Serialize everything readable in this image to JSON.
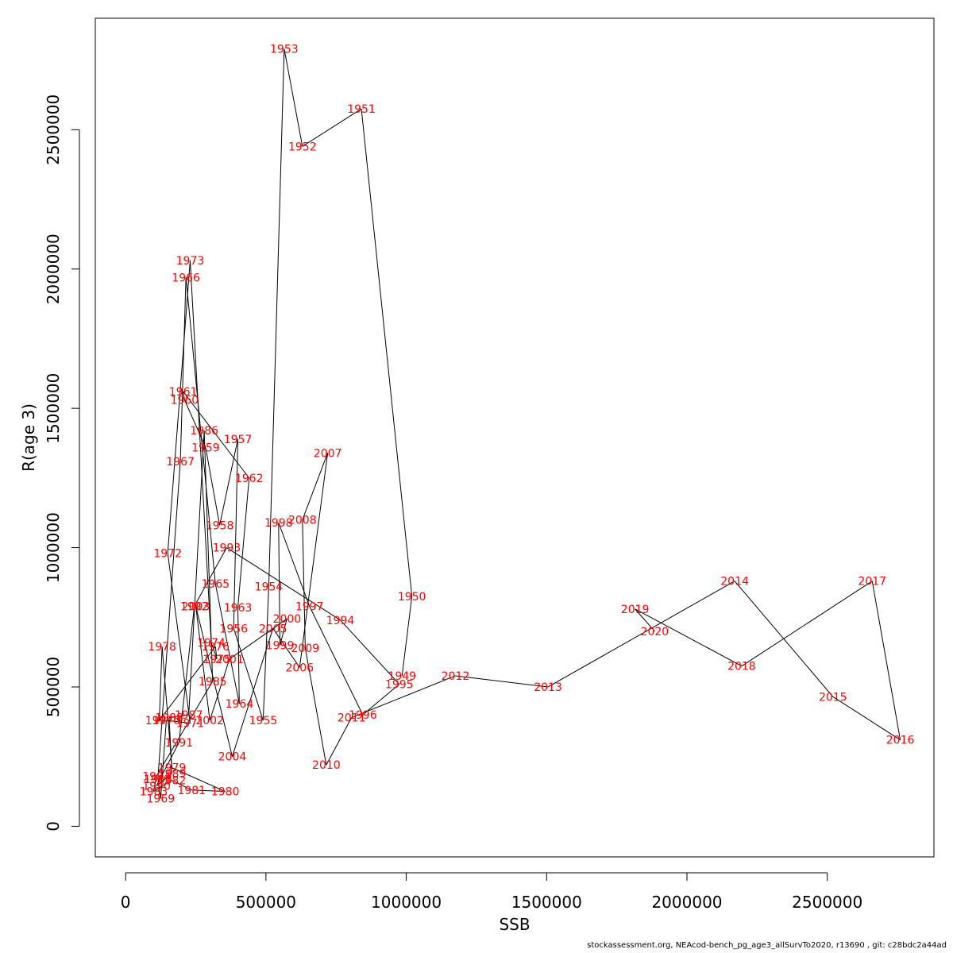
{
  "chart_data": {
    "type": "line",
    "xlabel": "SSB",
    "ylabel": "R(age 3)",
    "xlim": [
      -108000,
      2880000
    ],
    "ylim": [
      -110000,
      2900000
    ],
    "x_ticks": [
      0,
      500000,
      1000000,
      1500000,
      2000000,
      2500000
    ],
    "x_tick_labels": [
      "0",
      "500000",
      "1000000",
      "1500000",
      "2000000",
      "2500000"
    ],
    "y_ticks": [
      0,
      500000,
      1000000,
      1500000,
      2000000,
      2500000
    ],
    "y_tick_labels": [
      "0",
      "500000",
      "1000000",
      "1500000",
      "2000000",
      "2500000"
    ],
    "grid": false,
    "line_color": "#000000",
    "label_color": "#ff0000",
    "points": [
      {
        "label": "1949",
        "x": 985000,
        "y": 540000
      },
      {
        "label": "1950",
        "x": 1020000,
        "y": 825000
      },
      {
        "label": "1951",
        "x": 840000,
        "y": 2575000
      },
      {
        "label": "1952",
        "x": 630000,
        "y": 2440000
      },
      {
        "label": "1953",
        "x": 565000,
        "y": 2790000
      },
      {
        "label": "1954",
        "x": 510000,
        "y": 860000
      },
      {
        "label": "1955",
        "x": 490000,
        "y": 380000
      },
      {
        "label": "1956",
        "x": 385000,
        "y": 710000
      },
      {
        "label": "1957",
        "x": 400000,
        "y": 1390000
      },
      {
        "label": "1958",
        "x": 335000,
        "y": 1080000
      },
      {
        "label": "1959",
        "x": 285000,
        "y": 1360000
      },
      {
        "label": "1960",
        "x": 210000,
        "y": 1530000
      },
      {
        "label": "1961",
        "x": 205000,
        "y": 1560000
      },
      {
        "label": "1962",
        "x": 440000,
        "y": 1250000
      },
      {
        "label": "1963",
        "x": 400000,
        "y": 785000
      },
      {
        "label": "1964",
        "x": 405000,
        "y": 440000
      },
      {
        "label": "1965",
        "x": 320000,
        "y": 870000
      },
      {
        "label": "1966",
        "x": 215000,
        "y": 1970000
      },
      {
        "label": "1967",
        "x": 195000,
        "y": 1310000
      },
      {
        "label": "1968",
        "x": 115000,
        "y": 170000
      },
      {
        "label": "1969",
        "x": 125000,
        "y": 100000
      },
      {
        "label": "1970",
        "x": 145000,
        "y": 380000
      },
      {
        "label": "1971",
        "x": 230000,
        "y": 370000
      },
      {
        "label": "1972",
        "x": 150000,
        "y": 980000
      },
      {
        "label": "1973",
        "x": 230000,
        "y": 2030000
      },
      {
        "label": "1974",
        "x": 305000,
        "y": 660000
      },
      {
        "label": "1975",
        "x": 325000,
        "y": 600000
      },
      {
        "label": "1976",
        "x": 320000,
        "y": 645000
      },
      {
        "label": "1977",
        "x": 120000,
        "y": 380000
      },
      {
        "label": "1978",
        "x": 130000,
        "y": 645000
      },
      {
        "label": "1979",
        "x": 165000,
        "y": 210000
      },
      {
        "label": "1980",
        "x": 355000,
        "y": 125000
      },
      {
        "label": "1981",
        "x": 235000,
        "y": 130000
      },
      {
        "label": "1982",
        "x": 165000,
        "y": 165000
      },
      {
        "label": "1983",
        "x": 100000,
        "y": 125000
      },
      {
        "label": "1984",
        "x": 110000,
        "y": 180000
      },
      {
        "label": "1985",
        "x": 310000,
        "y": 520000
      },
      {
        "label": "1986",
        "x": 280000,
        "y": 1420000
      },
      {
        "label": "1987",
        "x": 225000,
        "y": 400000
      },
      {
        "label": "1988",
        "x": 155000,
        "y": 390000
      },
      {
        "label": "1989",
        "x": 165000,
        "y": 190000
      },
      {
        "label": "1990",
        "x": 110000,
        "y": 145000
      },
      {
        "label": "1991",
        "x": 190000,
        "y": 300000
      },
      {
        "label": "1992",
        "x": 245000,
        "y": 790000
      },
      {
        "label": "1993",
        "x": 360000,
        "y": 1000000
      },
      {
        "label": "1994",
        "x": 765000,
        "y": 740000
      },
      {
        "label": "1995",
        "x": 975000,
        "y": 510000
      },
      {
        "label": "1996",
        "x": 845000,
        "y": 400000
      },
      {
        "label": "1997",
        "x": 655000,
        "y": 790000
      },
      {
        "label": "1998",
        "x": 545000,
        "y": 1090000
      },
      {
        "label": "1999",
        "x": 550000,
        "y": 650000
      },
      {
        "label": "2000",
        "x": 575000,
        "y": 745000
      },
      {
        "label": "2001",
        "x": 370000,
        "y": 600000
      },
      {
        "label": "2002",
        "x": 300000,
        "y": 380000
      },
      {
        "label": "2003",
        "x": 250000,
        "y": 790000
      },
      {
        "label": "2004",
        "x": 380000,
        "y": 250000
      },
      {
        "label": "2005",
        "x": 525000,
        "y": 710000
      },
      {
        "label": "2006",
        "x": 620000,
        "y": 570000
      },
      {
        "label": "2007",
        "x": 720000,
        "y": 1340000
      },
      {
        "label": "2008",
        "x": 630000,
        "y": 1100000
      },
      {
        "label": "2009",
        "x": 640000,
        "y": 640000
      },
      {
        "label": "2010",
        "x": 715000,
        "y": 220000
      },
      {
        "label": "2011",
        "x": 805000,
        "y": 390000
      },
      {
        "label": "2012",
        "x": 1175000,
        "y": 540000
      },
      {
        "label": "2013",
        "x": 1505000,
        "y": 500000
      },
      {
        "label": "2014",
        "x": 2170000,
        "y": 880000
      },
      {
        "label": "2015",
        "x": 2520000,
        "y": 465000
      },
      {
        "label": "2016",
        "x": 2760000,
        "y": 310000
      },
      {
        "label": "2017",
        "x": 2660000,
        "y": 880000
      },
      {
        "label": "2018",
        "x": 2195000,
        "y": 575000
      },
      {
        "label": "2019",
        "x": 1815000,
        "y": 780000
      },
      {
        "label": "2020",
        "x": 1885000,
        "y": 700000
      }
    ]
  },
  "footer_text": "stockassessment.org, NEAcod-bench_pg_age3_allSurvTo2020, r13690 , git: c28bdc2a44ad"
}
